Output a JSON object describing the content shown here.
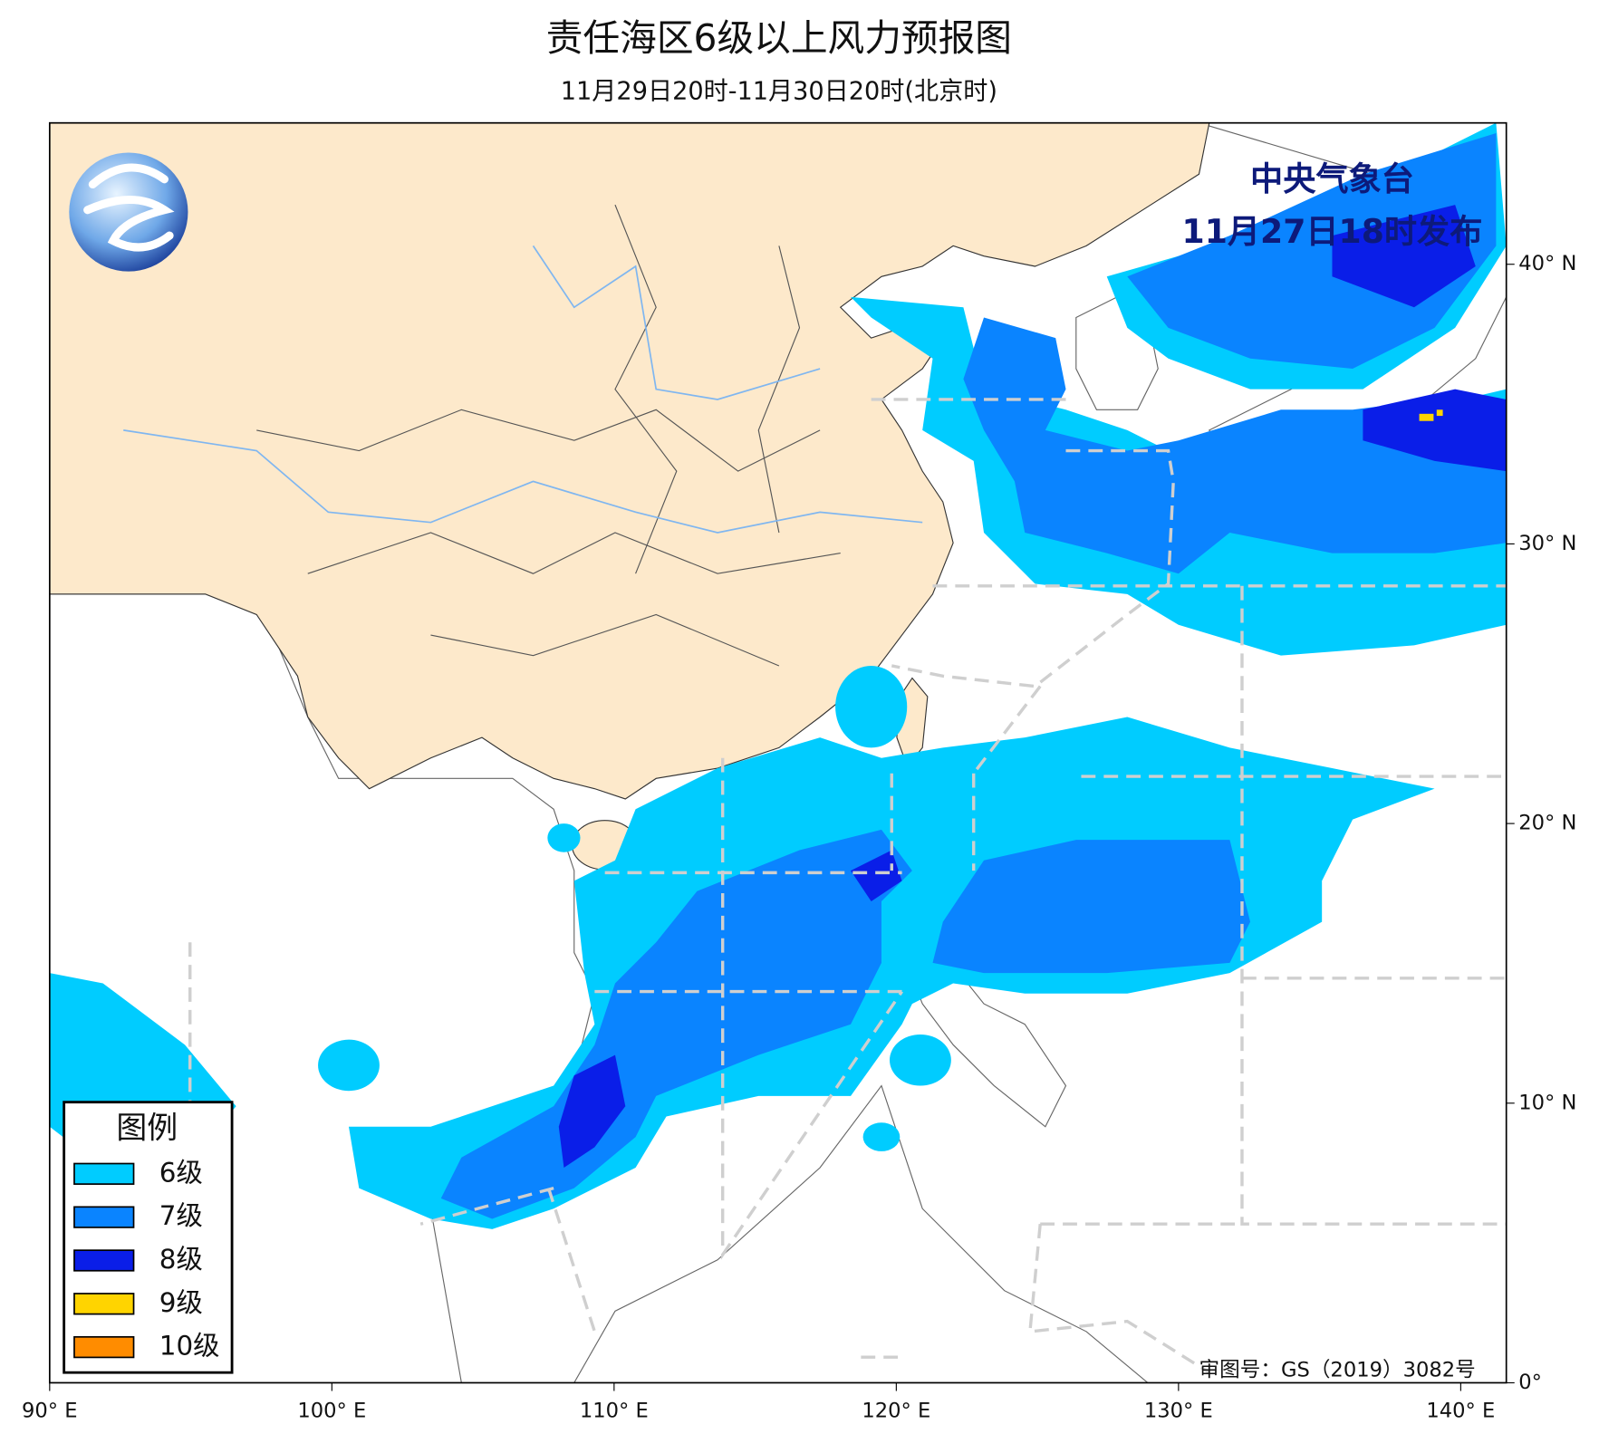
{
  "header": {
    "title": "责任海区6级以上风力预报图",
    "subtitle": "11月29日20时-11月30日20时(北京时)"
  },
  "issuer": {
    "name": "中央气象台",
    "issued": "11月27日18时发布"
  },
  "legend": {
    "title": "图例",
    "items": [
      {
        "label": "6级",
        "color": "#00ccff"
      },
      {
        "label": "7级",
        "color": "#0a84ff"
      },
      {
        "label": "8级",
        "color": "#0a1ee8"
      },
      {
        "label": "9级",
        "color": "#ffd400"
      },
      {
        "label": "10级",
        "color": "#ff8c00"
      }
    ]
  },
  "map": {
    "lon_ticks": [
      {
        "value": 90,
        "label": "90° E"
      },
      {
        "value": 100,
        "label": "100° E"
      },
      {
        "value": 110,
        "label": "110° E"
      },
      {
        "value": 120,
        "label": "120° E"
      },
      {
        "value": 130,
        "label": "130° E"
      },
      {
        "value": 140,
        "label": "140° E"
      }
    ],
    "lat_ticks": [
      {
        "value": 0,
        "label": "0°"
      },
      {
        "value": 10,
        "label": "10° N"
      },
      {
        "value": 20,
        "label": "20° N"
      },
      {
        "value": 30,
        "label": "30° N"
      },
      {
        "value": 40,
        "label": "40° N"
      }
    ]
  },
  "footer": {
    "approval": "审图号：GS（2019）3082号"
  }
}
